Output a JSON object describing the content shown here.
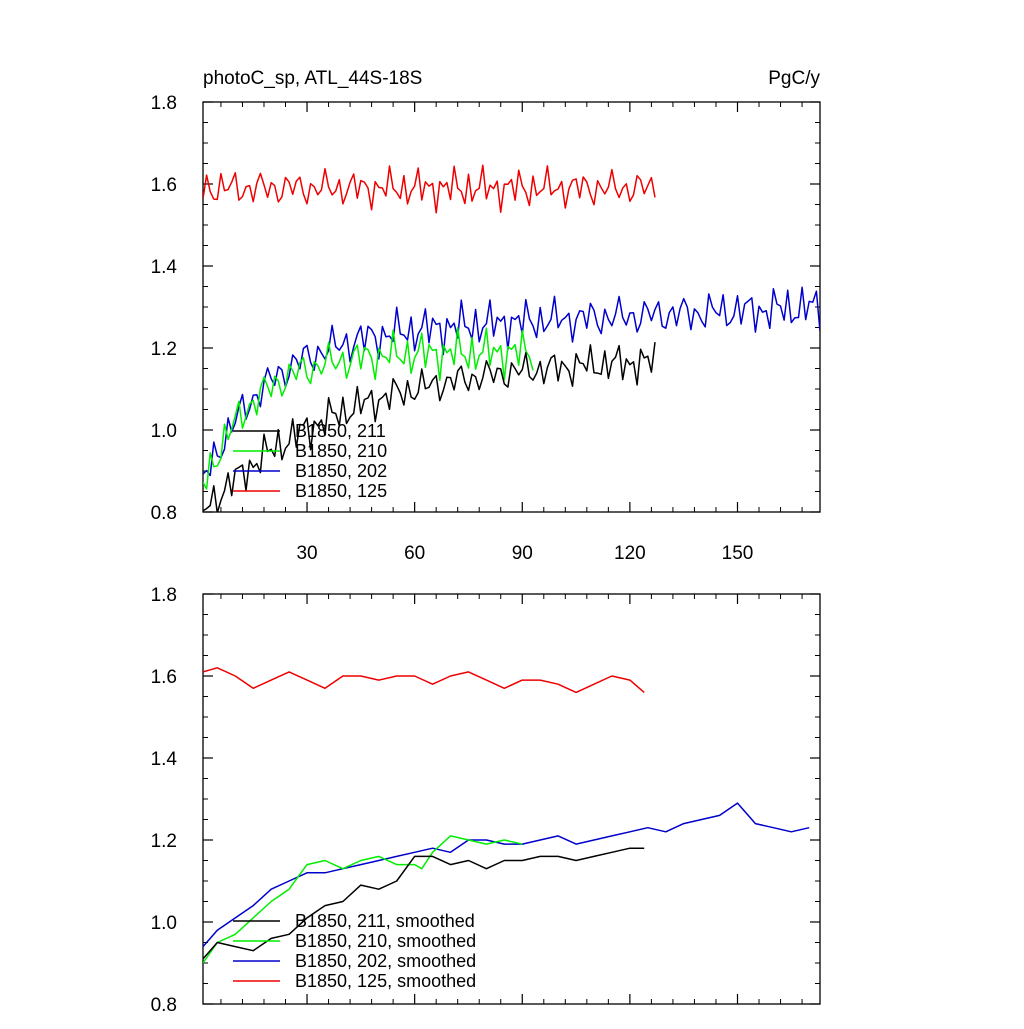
{
  "figure": {
    "title_left": "photoC_sp, ATL_44S-18S",
    "title_right": "PgC/y"
  },
  "chart_data": [
    {
      "type": "line",
      "panel": "top",
      "title": "photoC_sp, ATL_44S-18S",
      "units": "PgC/y",
      "xlim": [
        1,
        173
      ],
      "ylim": [
        0.8,
        1.8
      ],
      "xticks": [
        30,
        60,
        90,
        120,
        150
      ],
      "yticks": [
        0.8,
        1.0,
        1.2,
        1.4,
        1.6,
        1.8
      ],
      "ytick_labels": [
        "0.8",
        "1.0",
        "1.2",
        "1.4",
        "1.6",
        "1.8"
      ],
      "xtick_labels": [
        "30",
        "60",
        "90",
        "120",
        "150"
      ],
      "grid": false,
      "legend_position": "lower-left",
      "series": [
        {
          "name": "B1850, 211",
          "color": "#000000",
          "length": 127,
          "start": 0.8,
          "rise": 0.38,
          "tau": 38,
          "noise": 0.045,
          "phase": 1.3
        },
        {
          "name": "B1850, 210",
          "color": "#00ee00",
          "length": 93,
          "start": 0.86,
          "rise": 0.33,
          "tau": 14,
          "noise": 0.05,
          "phase": 2.1
        },
        {
          "name": "B1850, 202",
          "color": "#0000cc",
          "length": 173,
          "start": 0.87,
          "rise": 0.36,
          "tau": 17,
          "noise": 0.05,
          "phase": 0.4,
          "drift": 0.0004
        },
        {
          "name": "B1850, 125",
          "color": "#ee0000",
          "length": 127,
          "start": 1.59,
          "rise": 0.0,
          "tau": 1,
          "noise": 0.045,
          "phase": 3.7
        }
      ]
    },
    {
      "type": "line",
      "panel": "bottom",
      "xlim": [
        1,
        173
      ],
      "ylim": [
        0.8,
        1.8
      ],
      "yticks": [
        0.8,
        1.0,
        1.2,
        1.4,
        1.6,
        1.8
      ],
      "ytick_labels": [
        "0.8",
        "1.0",
        "1.2",
        "1.4",
        "1.6",
        "1.8"
      ],
      "grid": false,
      "legend_position": "lower-left",
      "series": [
        {
          "name": "B1850, 211, smoothed",
          "color": "#000000",
          "x": [
            1,
            5,
            10,
            15,
            20,
            25,
            30,
            35,
            40,
            45,
            50,
            55,
            60,
            65,
            70,
            75,
            80,
            85,
            90,
            95,
            100,
            105,
            110,
            115,
            120,
            124
          ],
          "y": [
            0.91,
            0.95,
            0.94,
            0.93,
            0.96,
            0.97,
            1.01,
            1.04,
            1.05,
            1.09,
            1.08,
            1.1,
            1.16,
            1.16,
            1.14,
            1.15,
            1.13,
            1.15,
            1.15,
            1.16,
            1.16,
            1.15,
            1.16,
            1.17,
            1.18,
            1.18
          ]
        },
        {
          "name": "B1850, 210, smoothed",
          "color": "#00ee00",
          "x": [
            1,
            5,
            10,
            15,
            20,
            25,
            30,
            35,
            40,
            45,
            50,
            55,
            60,
            62,
            65,
            70,
            75,
            80,
            85,
            90
          ],
          "y": [
            0.9,
            0.95,
            0.97,
            1.01,
            1.05,
            1.08,
            1.14,
            1.15,
            1.13,
            1.15,
            1.16,
            1.14,
            1.14,
            1.13,
            1.17,
            1.21,
            1.2,
            1.19,
            1.2,
            1.19
          ]
        },
        {
          "name": "B1850, 202, smoothed",
          "color": "#0000cc",
          "x": [
            1,
            5,
            10,
            15,
            20,
            25,
            30,
            35,
            40,
            45,
            50,
            55,
            60,
            65,
            70,
            75,
            80,
            85,
            90,
            95,
            100,
            105,
            110,
            115,
            120,
            125,
            130,
            135,
            140,
            145,
            150,
            155,
            160,
            165,
            170
          ],
          "y": [
            0.94,
            0.98,
            1.01,
            1.04,
            1.08,
            1.1,
            1.12,
            1.12,
            1.13,
            1.14,
            1.15,
            1.16,
            1.17,
            1.18,
            1.17,
            1.2,
            1.2,
            1.19,
            1.19,
            1.2,
            1.21,
            1.19,
            1.2,
            1.21,
            1.22,
            1.23,
            1.22,
            1.24,
            1.25,
            1.26,
            1.29,
            1.24,
            1.23,
            1.22,
            1.23
          ]
        },
        {
          "name": "B1850, 125, smoothed",
          "color": "#ee0000",
          "x": [
            1,
            5,
            10,
            15,
            20,
            25,
            30,
            35,
            40,
            45,
            50,
            55,
            60,
            65,
            70,
            75,
            80,
            85,
            90,
            95,
            100,
            105,
            110,
            115,
            120,
            124
          ],
          "y": [
            1.61,
            1.62,
            1.6,
            1.57,
            1.59,
            1.61,
            1.59,
            1.57,
            1.6,
            1.6,
            1.59,
            1.6,
            1.6,
            1.58,
            1.6,
            1.61,
            1.59,
            1.57,
            1.59,
            1.59,
            1.58,
            1.56,
            1.58,
            1.6,
            1.59,
            1.56
          ]
        }
      ]
    }
  ]
}
